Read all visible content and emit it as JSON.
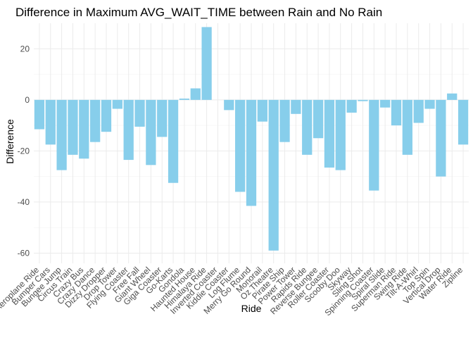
{
  "chart_data": {
    "type": "bar",
    "title": "Difference in Maximum AVG_WAIT_TIME between Rain and No Rain",
    "xlabel": "Ride",
    "ylabel": "Difference",
    "ylim": [
      -64,
      30
    ],
    "yticks": [
      -60,
      -40,
      -20,
      0,
      20
    ],
    "grid": true,
    "bar_color": "#87CEEB",
    "categories": [
      "Aeroplane Ride",
      "Bumper Cars",
      "Bungee Jump",
      "Circus Train",
      "Crazy Bus",
      "Crazy Dance",
      "Dizzy Dropper",
      "Drop Tower",
      "Flying Coaster",
      "Free Fall",
      "Giant Wheel",
      "Giga Coaster",
      "Go-Karts",
      "Gondola",
      "Haunted House",
      "Himalaya Ride",
      "Inverted Coaster",
      "Kiddie Coaster",
      "Log Flume",
      "Merry Go Round",
      "Monorail",
      "Oz Theatre",
      "Pirate Ship",
      "Power Tower",
      "Rapids Ride",
      "Reverse Bungee",
      "Roller Coaster",
      "Scooby Doo",
      "Skyway",
      "Sling Shot",
      "Spinning Coaster",
      "Spiral Slide",
      "Superman Ride",
      "Swing Ride",
      "Tilt-A-Whirl",
      "Top Spin",
      "Vertical Drop",
      "Water Ride",
      "Zipline"
    ],
    "values": [
      -11.5,
      -17.5,
      -27.5,
      -21.5,
      -23,
      -16.5,
      -12.5,
      -3.5,
      -23.5,
      -10.5,
      -25.5,
      -14.5,
      -32.5,
      0.5,
      4.5,
      28.5,
      0,
      -4,
      -36,
      -41.5,
      -8.5,
      -59,
      -16.5,
      -5.5,
      -21.5,
      -15,
      -26.5,
      -27.5,
      -5,
      -0.5,
      -35.5,
      -3,
      -10,
      -21.5,
      -9,
      -3.5,
      -30,
      2.5,
      -17.5
    ]
  }
}
